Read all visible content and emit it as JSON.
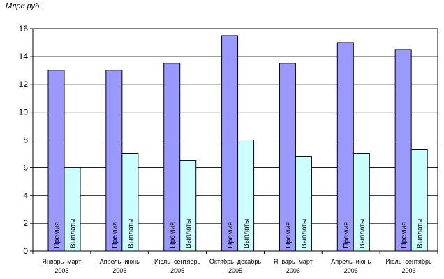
{
  "unit_label": "Млрд руб.",
  "chart_data": {
    "type": "bar",
    "ylabel": "Млрд руб.",
    "ylim": [
      0,
      16
    ],
    "yticks": [
      0,
      2,
      4,
      6,
      8,
      10,
      12,
      14,
      16
    ],
    "grid": true,
    "legend": "none",
    "categories": [
      [
        "Январь–март",
        "2005"
      ],
      [
        "Апрель–июнь",
        "2005"
      ],
      [
        "Июль–сентябрь",
        "2005"
      ],
      [
        "Октябрь–декабрь",
        "2005"
      ],
      [
        "Январь–март",
        "2006"
      ],
      [
        "Апрель–июнь",
        "2006"
      ],
      [
        "Июль–сентябрь",
        "2006"
      ]
    ],
    "series": [
      {
        "name": "Премия",
        "color": "#9999ff",
        "values": [
          13.0,
          13.0,
          13.5,
          15.5,
          13.5,
          15.0,
          14.5
        ]
      },
      {
        "name": "Выплаты",
        "color": "#ccffff",
        "values": [
          6.0,
          7.0,
          6.5,
          8.0,
          6.8,
          7.0,
          7.3
        ]
      }
    ]
  }
}
